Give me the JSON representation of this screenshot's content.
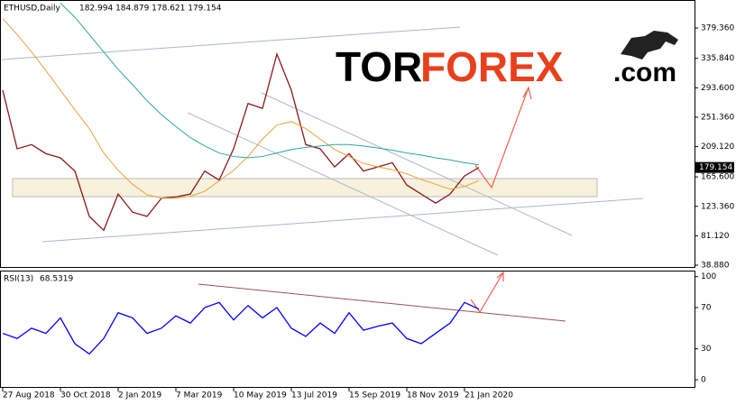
{
  "logo": {
    "part1": "TOR",
    "part2": "FOREX",
    "part3": ".com"
  },
  "chart_data": [
    {
      "type": "line",
      "title": "ETHUSD,Daily",
      "subtitle": "182.994 184.879 178.621 179.154",
      "last_value": 179.154,
      "last_value_color": "#000000",
      "ylim": [
        35,
        417
      ],
      "yticks": [
        {
          "value": 379.36,
          "label": "379.360"
        },
        {
          "value": 335.84,
          "label": "335.840"
        },
        {
          "value": 293.6,
          "label": "293.600"
        },
        {
          "value": 251.36,
          "label": "251.360"
        },
        {
          "value": 209.12,
          "label": "209.120"
        },
        {
          "value": 165.6,
          "label": "165.600"
        },
        {
          "value": 123.36,
          "label": "123.360"
        },
        {
          "value": 81.12,
          "label": "81.120"
        },
        {
          "value": 38.88,
          "label": "38.880"
        }
      ],
      "grid": false,
      "series": [
        {
          "color": "#8b1a1a",
          "values": [
            290,
            206,
            212,
            199,
            193,
            174,
            109,
            89,
            141,
            115,
            109,
            135,
            137,
            141,
            174,
            161,
            206,
            271,
            264,
            342,
            290,
            212,
            206,
            180,
            199,
            174,
            180,
            186,
            154,
            141,
            128,
            141,
            167,
            179.154
          ]
        },
        {
          "color": "#e8a33a",
          "values": [
            393,
            370,
            345,
            318,
            290,
            262,
            235,
            200,
            175,
            155,
            140,
            135,
            135,
            138,
            145,
            160,
            175,
            195,
            220,
            240,
            245,
            235,
            220,
            205,
            195,
            185,
            180,
            176,
            170,
            162,
            155,
            148,
            152,
            160
          ]
        },
        {
          "color": "#2aa79b",
          "values": [
            null,
            null,
            null,
            null,
            415,
            395,
            370,
            345,
            320,
            298,
            275,
            255,
            238,
            222,
            210,
            200,
            195,
            193,
            195,
            200,
            205,
            208,
            210,
            212,
            212,
            210,
            207,
            204,
            200,
            197,
            193,
            190,
            186,
            183
          ]
        }
      ]
    },
    {
      "type": "line",
      "title": "RSI(13)",
      "subtitle": "68.5319",
      "categories": [
        "27 Aug 2018",
        null,
        null,
        null,
        "30 Oct 2018",
        null,
        null,
        null,
        "2 Jan 2019",
        null,
        null,
        null,
        "7 Mar 2019",
        null,
        null,
        null,
        "10 May 2019",
        null,
        null,
        null,
        "13 Jul 2019",
        null,
        null,
        null,
        "15 Sep 2019",
        null,
        null,
        null,
        "18 Nov 2019",
        null,
        null,
        null,
        "21 Jan 2020",
        null
      ],
      "ylim": [
        -7,
        105
      ],
      "yticks": [
        100,
        70,
        30,
        0
      ],
      "grid": false,
      "series": [
        {
          "color": "#0000ff",
          "values": [
            45,
            40,
            50,
            45,
            60,
            35,
            25,
            40,
            65,
            60,
            45,
            50,
            62,
            55,
            70,
            75,
            58,
            72,
            60,
            70,
            50,
            42,
            55,
            45,
            65,
            48,
            52,
            55,
            40,
            35,
            45,
            55,
            75,
            68.5319
          ]
        }
      ]
    }
  ]
}
